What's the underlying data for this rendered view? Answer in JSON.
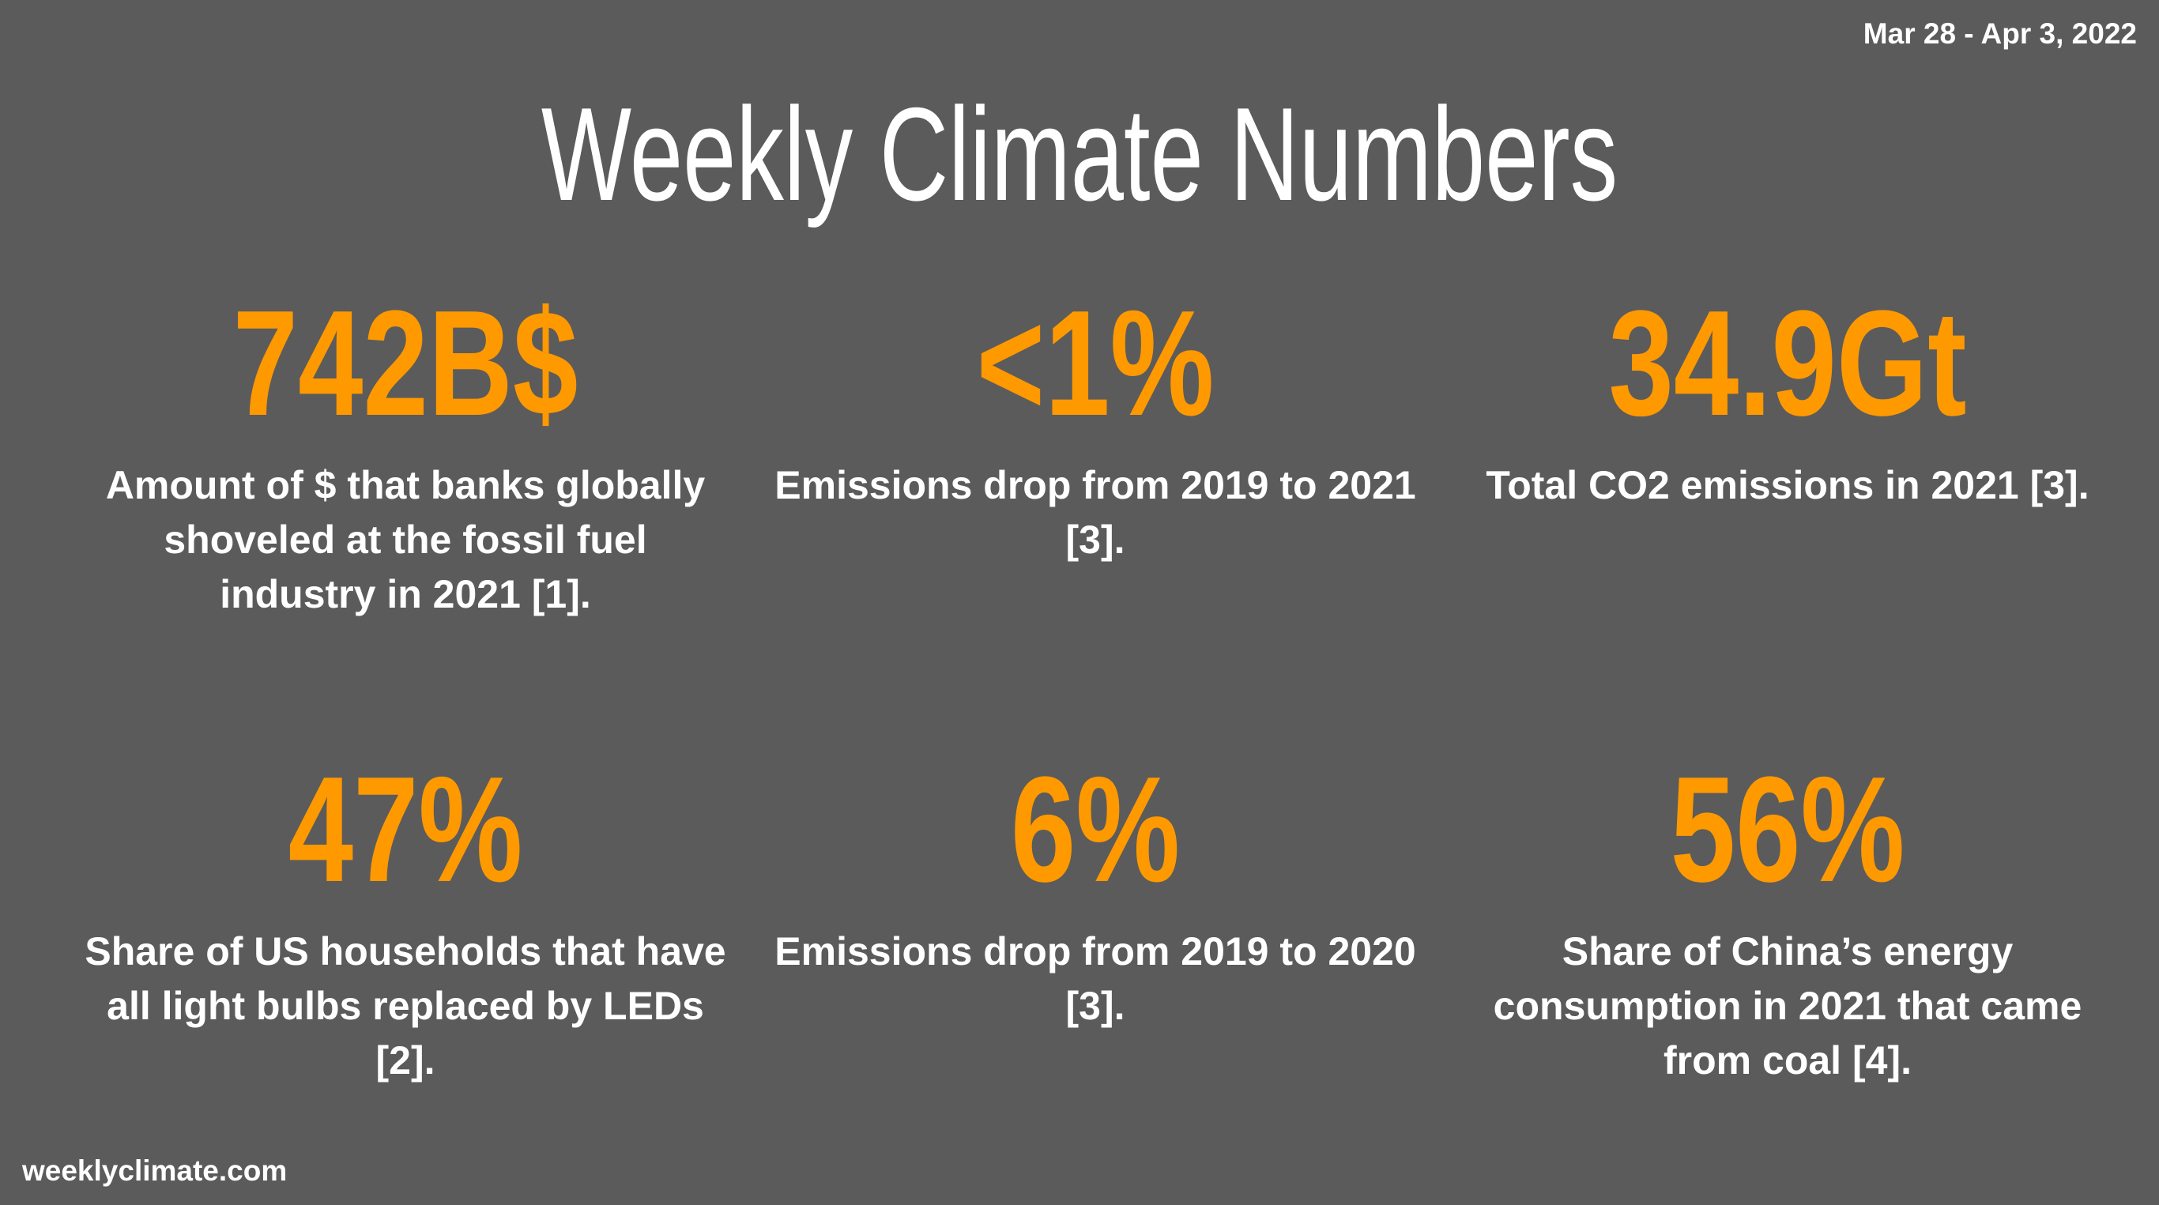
{
  "date_range": "Mar 28 - Apr 3, 2022",
  "title": "Weekly Climate Numbers",
  "stats": [
    {
      "value": "742B$",
      "description": "Amount of $ that banks globally shoveled at the fossil fuel industry in 2021 [1]."
    },
    {
      "value": "<1%",
      "description": "Emissions drop from 2019 to 2021 [3]."
    },
    {
      "value": "34.9Gt",
      "description": "Total CO2 emissions in 2021 [3]."
    },
    {
      "value": "47%",
      "description": "Share of US households that have all light bulbs replaced by LEDs [2]."
    },
    {
      "value": "6%",
      "description": "Emissions drop from 2019 to 2020 [3]."
    },
    {
      "value": "56%",
      "description": "Share of China’s energy consumption in 2021 that came from coal [4]."
    }
  ],
  "footer": "weeklyclimate.com",
  "colors": {
    "background": "#5b5b5b",
    "accent": "#ff9900",
    "text": "#ffffff"
  }
}
